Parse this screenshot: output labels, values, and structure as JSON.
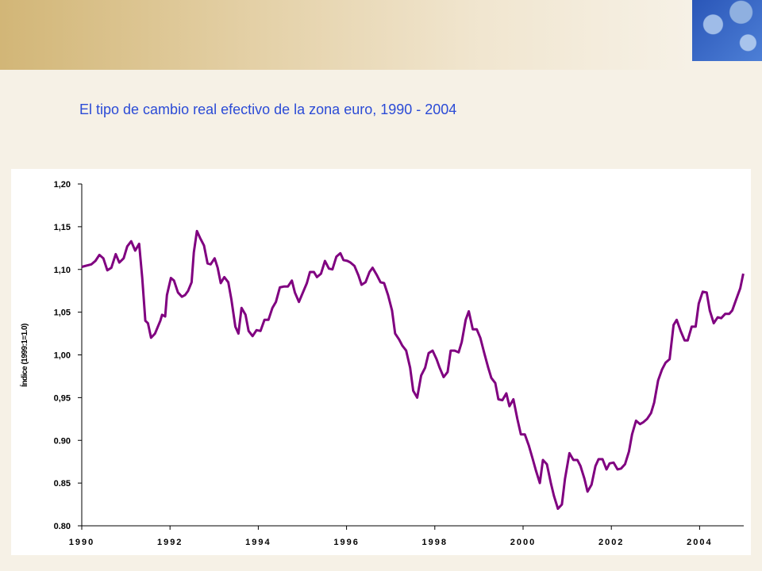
{
  "chart_data": {
    "type": "line",
    "title": "El tipo de cambio real efectivo de la zona euro, 1990 - 2004",
    "y_label": "Índice (1999:1=1.0)",
    "x": [
      1990.0,
      1990.22,
      1990.31,
      1990.4,
      1990.49,
      1990.58,
      1990.67,
      1990.77,
      1990.85,
      1990.95,
      1991.03,
      1991.12,
      1991.21,
      1991.3,
      1991.37,
      1991.44,
      1991.5,
      1991.57,
      1991.66,
      1991.78,
      1991.82,
      1991.89,
      1991.93,
      1992.02,
      1992.09,
      1992.18,
      1992.27,
      1992.34,
      1992.41,
      1992.49,
      1992.54,
      1992.61,
      1992.68,
      1992.77,
      1992.85,
      1992.92,
      1993.01,
      1993.08,
      1993.15,
      1993.23,
      1993.32,
      1993.39,
      1993.48,
      1993.55,
      1993.62,
      1993.71,
      1993.78,
      1993.87,
      1993.96,
      1994.05,
      1994.14,
      1994.23,
      1994.32,
      1994.4,
      1994.49,
      1994.58,
      1994.67,
      1994.76,
      1994.83,
      1994.92,
      1995.01,
      1995.1,
      1995.17,
      1995.26,
      1995.33,
      1995.42,
      1995.51,
      1995.6,
      1995.68,
      1995.77,
      1995.86,
      1995.93,
      1996.02,
      1996.09,
      1996.18,
      1996.27,
      1996.34,
      1996.43,
      1996.52,
      1996.59,
      1996.68,
      1996.77,
      1996.85,
      1996.94,
      1997.03,
      1997.1,
      1997.19,
      1997.26,
      1997.35,
      1997.44,
      1997.51,
      1997.6,
      1997.69,
      1997.78,
      1997.86,
      1997.95,
      1998.04,
      1998.11,
      1998.2,
      1998.29,
      1998.36,
      1998.45,
      1998.54,
      1998.61,
      1998.7,
      1998.77,
      1998.86,
      1998.95,
      1999.03,
      1999.12,
      1999.21,
      1999.28,
      1999.37,
      1999.44,
      1999.53,
      1999.62,
      1999.69,
      1999.78,
      1999.87,
      1999.95,
      2000.04,
      2000.13,
      2000.22,
      2000.29,
      2000.38,
      2000.45,
      2000.54,
      2000.63,
      2000.7,
      2000.79,
      2000.88,
      2000.95,
      2001.05,
      2001.14,
      2001.23,
      2001.3,
      2001.39,
      2001.46,
      2001.55,
      2001.64,
      2001.71,
      2001.8,
      2001.89,
      2001.96,
      2002.05,
      2002.14,
      2002.22,
      2002.31,
      2002.4,
      2002.47,
      2002.56,
      2002.65,
      2002.72,
      2002.81,
      2002.9,
      2002.97,
      2003.06,
      2003.15,
      2003.23,
      2003.32,
      2003.41,
      2003.48,
      2003.57,
      2003.66,
      2003.73,
      2003.82,
      2003.91,
      2003.98,
      2004.07,
      2004.16,
      2004.23,
      2004.32,
      2004.41,
      2004.49,
      2004.58,
      2004.67,
      2004.74,
      2004.83,
      2004.92,
      2004.99
    ],
    "series": [
      {
        "color": "#800080",
        "values": [
          1.103,
          1.106,
          1.11,
          1.117,
          1.113,
          1.099,
          1.102,
          1.118,
          1.108,
          1.113,
          1.127,
          1.133,
          1.122,
          1.13,
          1.09,
          1.04,
          1.037,
          1.02,
          1.025,
          1.04,
          1.047,
          1.045,
          1.07,
          1.09,
          1.087,
          1.073,
          1.068,
          1.07,
          1.075,
          1.085,
          1.12,
          1.145,
          1.137,
          1.128,
          1.107,
          1.106,
          1.113,
          1.102,
          1.084,
          1.091,
          1.085,
          1.065,
          1.033,
          1.025,
          1.055,
          1.047,
          1.028,
          1.022,
          1.029,
          1.028,
          1.041,
          1.041,
          1.055,
          1.062,
          1.079,
          1.08,
          1.08,
          1.087,
          1.073,
          1.062,
          1.073,
          1.084,
          1.097,
          1.097,
          1.091,
          1.095,
          1.11,
          1.101,
          1.1,
          1.115,
          1.119,
          1.111,
          1.11,
          1.108,
          1.104,
          1.093,
          1.082,
          1.085,
          1.097,
          1.102,
          1.094,
          1.085,
          1.084,
          1.07,
          1.052,
          1.025,
          1.018,
          1.011,
          1.005,
          0.985,
          0.958,
          0.95,
          0.976,
          0.985,
          1.002,
          1.005,
          0.995,
          0.985,
          0.974,
          0.98,
          1.005,
          1.005,
          1.003,
          1.015,
          1.041,
          1.051,
          1.03,
          1.03,
          1.02,
          1.002,
          0.985,
          0.973,
          0.967,
          0.948,
          0.947,
          0.955,
          0.94,
          0.948,
          0.925,
          0.907,
          0.907,
          0.894,
          0.878,
          0.865,
          0.85,
          0.877,
          0.872,
          0.85,
          0.835,
          0.82,
          0.825,
          0.855,
          0.885,
          0.877,
          0.877,
          0.87,
          0.855,
          0.84,
          0.848,
          0.87,
          0.878,
          0.878,
          0.866,
          0.873,
          0.874,
          0.866,
          0.867,
          0.872,
          0.887,
          0.907,
          0.923,
          0.919,
          0.921,
          0.925,
          0.932,
          0.944,
          0.97,
          0.983,
          0.991,
          0.995,
          1.035,
          1.041,
          1.028,
          1.017,
          1.017,
          1.033,
          1.033,
          1.06,
          1.074,
          1.073,
          1.052,
          1.037,
          1.044,
          1.043,
          1.048,
          1.048,
          1.052,
          1.065,
          1.078,
          1.095
        ]
      }
    ],
    "xlim": [
      1990,
      2005
    ],
    "xticks": [
      1990,
      1992,
      1994,
      1996,
      1998,
      2000,
      2002,
      2004
    ],
    "ylim": [
      0.8,
      1.2
    ],
    "yticks": [
      {
        "value": 0.8,
        "label": "0.80"
      },
      {
        "value": 0.85,
        "label": "0.85"
      },
      {
        "value": 0.9,
        "label": "0.90"
      },
      {
        "value": 0.95,
        "label": "0,95"
      },
      {
        "value": 1.0,
        "label": "1,00"
      },
      {
        "value": 1.05,
        "label": "1,05"
      },
      {
        "value": 1.1,
        "label": "1,10"
      },
      {
        "value": 1.15,
        "label": "1,15"
      },
      {
        "value": 1.2,
        "label": "1,20"
      }
    ]
  }
}
